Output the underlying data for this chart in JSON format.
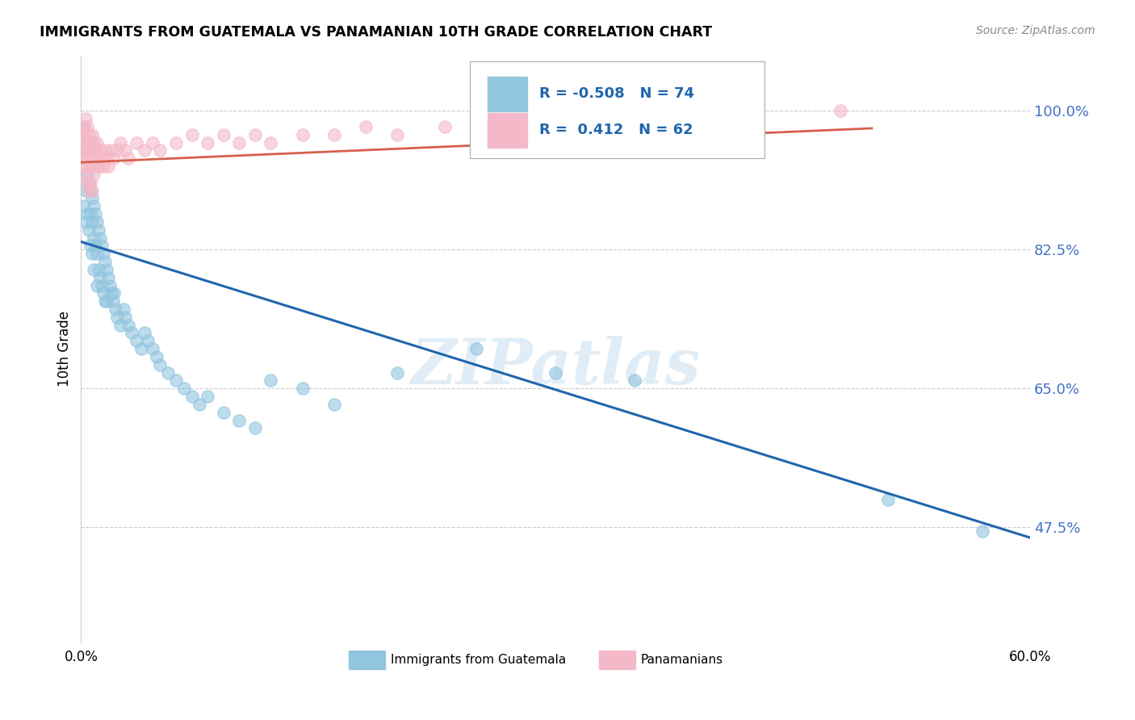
{
  "title": "IMMIGRANTS FROM GUATEMALA VS PANAMANIAN 10TH GRADE CORRELATION CHART",
  "source": "Source: ZipAtlas.com",
  "ylabel": "10th Grade",
  "yticks": [
    0.475,
    0.65,
    0.825,
    1.0
  ],
  "ytick_labels": [
    "47.5%",
    "65.0%",
    "82.5%",
    "100.0%"
  ],
  "xmin": 0.0,
  "xmax": 0.6,
  "ymin": 0.33,
  "ymax": 1.07,
  "legend_blue_r": "-0.508",
  "legend_blue_n": "74",
  "legend_pink_r": "0.412",
  "legend_pink_n": "62",
  "legend_label_blue": "Immigrants from Guatemala",
  "legend_label_pink": "Panamanians",
  "blue_color": "#92c5de",
  "pink_color": "#f4b8c8",
  "blue_line_color": "#2166ac",
  "pink_line_color": "#d6604d",
  "watermark": "ZIPatlas",
  "blue_scatter_x": [
    0.001,
    0.002,
    0.002,
    0.003,
    0.003,
    0.003,
    0.004,
    0.004,
    0.005,
    0.005,
    0.005,
    0.006,
    0.006,
    0.006,
    0.007,
    0.007,
    0.007,
    0.008,
    0.008,
    0.008,
    0.009,
    0.009,
    0.01,
    0.01,
    0.01,
    0.011,
    0.011,
    0.012,
    0.012,
    0.013,
    0.013,
    0.014,
    0.014,
    0.015,
    0.015,
    0.016,
    0.016,
    0.017,
    0.018,
    0.019,
    0.02,
    0.021,
    0.022,
    0.023,
    0.025,
    0.027,
    0.028,
    0.03,
    0.032,
    0.035,
    0.038,
    0.04,
    0.042,
    0.045,
    0.048,
    0.05,
    0.055,
    0.06,
    0.065,
    0.07,
    0.075,
    0.08,
    0.09,
    0.1,
    0.11,
    0.12,
    0.14,
    0.16,
    0.2,
    0.25,
    0.3,
    0.35,
    0.51,
    0.57
  ],
  "blue_scatter_y": [
    0.98,
    0.96,
    0.88,
    0.95,
    0.9,
    0.86,
    0.92,
    0.87,
    0.96,
    0.91,
    0.85,
    0.9,
    0.87,
    0.83,
    0.89,
    0.86,
    0.82,
    0.88,
    0.84,
    0.8,
    0.87,
    0.83,
    0.86,
    0.82,
    0.78,
    0.85,
    0.8,
    0.84,
    0.79,
    0.83,
    0.78,
    0.82,
    0.77,
    0.81,
    0.76,
    0.8,
    0.76,
    0.79,
    0.78,
    0.77,
    0.76,
    0.77,
    0.75,
    0.74,
    0.73,
    0.75,
    0.74,
    0.73,
    0.72,
    0.71,
    0.7,
    0.72,
    0.71,
    0.7,
    0.69,
    0.68,
    0.67,
    0.66,
    0.65,
    0.64,
    0.63,
    0.64,
    0.62,
    0.61,
    0.6,
    0.66,
    0.65,
    0.63,
    0.67,
    0.7,
    0.67,
    0.66,
    0.51,
    0.47
  ],
  "pink_scatter_x": [
    0.001,
    0.001,
    0.002,
    0.002,
    0.002,
    0.003,
    0.003,
    0.003,
    0.003,
    0.004,
    0.004,
    0.004,
    0.004,
    0.005,
    0.005,
    0.005,
    0.005,
    0.006,
    0.006,
    0.006,
    0.007,
    0.007,
    0.007,
    0.007,
    0.008,
    0.008,
    0.008,
    0.009,
    0.009,
    0.01,
    0.01,
    0.011,
    0.012,
    0.013,
    0.014,
    0.015,
    0.016,
    0.017,
    0.019,
    0.021,
    0.023,
    0.025,
    0.028,
    0.03,
    0.035,
    0.04,
    0.045,
    0.05,
    0.06,
    0.07,
    0.08,
    0.09,
    0.1,
    0.11,
    0.12,
    0.14,
    0.16,
    0.18,
    0.2,
    0.23,
    0.28,
    0.48
  ],
  "pink_scatter_y": [
    0.97,
    0.94,
    0.98,
    0.96,
    0.93,
    0.99,
    0.97,
    0.95,
    0.92,
    0.98,
    0.96,
    0.94,
    0.91,
    0.97,
    0.95,
    0.93,
    0.9,
    0.96,
    0.94,
    0.91,
    0.97,
    0.95,
    0.93,
    0.9,
    0.96,
    0.94,
    0.92,
    0.95,
    0.93,
    0.96,
    0.94,
    0.93,
    0.95,
    0.94,
    0.93,
    0.95,
    0.94,
    0.93,
    0.95,
    0.94,
    0.95,
    0.96,
    0.95,
    0.94,
    0.96,
    0.95,
    0.96,
    0.95,
    0.96,
    0.97,
    0.96,
    0.97,
    0.96,
    0.97,
    0.96,
    0.97,
    0.97,
    0.98,
    0.97,
    0.98,
    0.98,
    1.0
  ],
  "blue_line_x0": 0.0,
  "blue_line_y0": 0.835,
  "blue_line_x1": 0.6,
  "blue_line_y1": 0.462,
  "pink_line_x0": 0.0,
  "pink_line_y0": 0.935,
  "pink_line_x1": 0.5,
  "pink_line_y1": 0.978
}
